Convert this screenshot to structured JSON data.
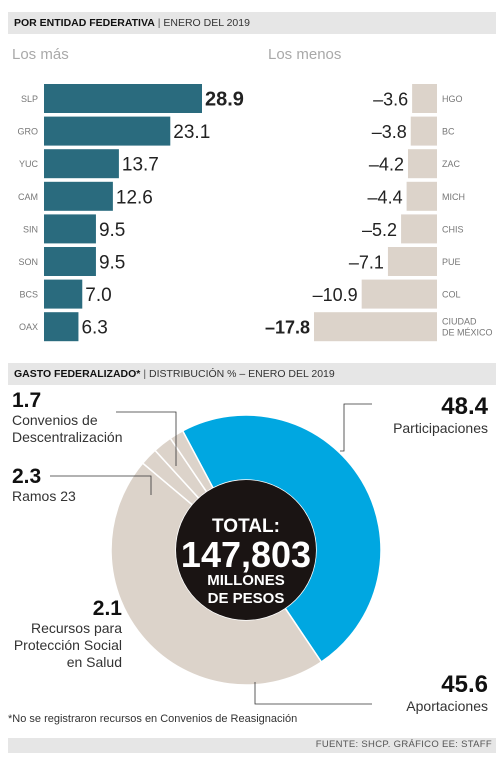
{
  "section1": {
    "title": "POR ENTIDAD FEDERATIVA",
    "separator": "|",
    "subtitle": "ENERO DEL 2019",
    "left_heading": "Los más",
    "right_heading": "Los menos"
  },
  "section2": {
    "title": "GASTO FEDERALIZADO*",
    "separator": "|",
    "subtitle": "DISTRIBUCIÓN % – ENERO DEL 2019",
    "total_label": "TOTAL:",
    "total_value": "147,803",
    "total_unit_line1": "MILLONES",
    "total_unit_line2": "DE PESOS",
    "labels": {
      "convenios_value": "1.7",
      "convenios_name_l1": "Convenios de",
      "convenios_name_l2": "Descentralización",
      "ramos_value": "2.3",
      "ramos_name": "Ramos 23",
      "proteccion_value": "2.1",
      "proteccion_name_l1": "Recursos para",
      "proteccion_name_l2": "Protección Social",
      "proteccion_name_l3": "en Salud",
      "participaciones_value": "48.4",
      "participaciones_name": "Participaciones",
      "aportaciones_value": "45.6",
      "aportaciones_name": "Aportaciones"
    }
  },
  "footnote": "*No se registraron recursos en Convenios de Reasignación",
  "source": "FUENTE: SHCP. GRÁFICO EE: STAFF",
  "colors": {
    "bar_top": "#2a6b7e",
    "bar_bottom": "#dcd3ca",
    "participaciones": "#00a7e1",
    "others": "#dcd3ca",
    "center": "#1a1413"
  },
  "chart_data": [
    {
      "type": "bar",
      "orientation": "horizontal",
      "categories": [
        "SLP",
        "GRO",
        "YUC",
        "CAM",
        "SIN",
        "SON",
        "BCS",
        "OAX"
      ],
      "values": [
        28.9,
        23.1,
        13.7,
        12.6,
        9.5,
        9.5,
        7.0,
        6.3
      ],
      "value_labels": [
        "28.9",
        "23.1",
        "13.7",
        "12.6",
        "9.5",
        "9.5",
        "7.0",
        "6.3"
      ],
      "title": "Los más",
      "highlight_first": true
    },
    {
      "type": "bar",
      "orientation": "horizontal",
      "categories": [
        "HGO",
        "BC",
        "ZAC",
        "MICH",
        "CHIS",
        "PUE",
        "COL",
        "CIUDAD DE MÉXICO"
      ],
      "values": [
        -3.6,
        -3.8,
        -4.2,
        -4.4,
        -5.2,
        -7.1,
        -10.9,
        -17.8
      ],
      "value_labels": [
        "–3.6",
        "–3.8",
        "–4.2",
        "–4.4",
        "–5.2",
        "–7.1",
        "–10.9",
        "–17.8"
      ],
      "title": "Los menos",
      "highlight_last": true
    },
    {
      "type": "pie",
      "style": "donut",
      "categories": [
        "Participaciones",
        "Aportaciones",
        "Recursos para Protección Social en Salud",
        "Ramos 23",
        "Convenios de Descentralización"
      ],
      "values": [
        48.4,
        45.6,
        2.1,
        2.3,
        1.7
      ]
    }
  ]
}
